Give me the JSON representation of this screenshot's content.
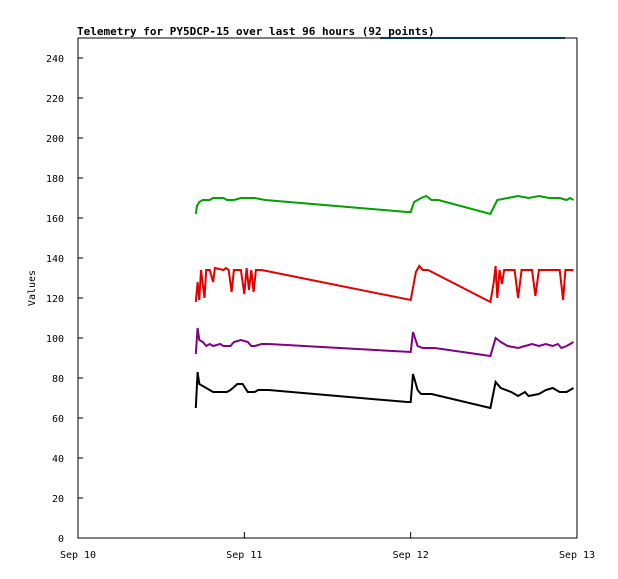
{
  "chart_data": {
    "type": "line",
    "title": "Telemetry for PY5DCP-15 over last 96 hours (92 points)",
    "xlabel": "",
    "ylabel": "Values",
    "xlim": [
      "2025-09-10T00:00",
      "2025-09-13T00:00"
    ],
    "ylim": [
      0,
      250
    ],
    "x_ticks": [
      "Sep 10",
      "Sep 11",
      "Sep 12",
      "Sep 13"
    ],
    "y_ticks": [
      0,
      20,
      40,
      60,
      80,
      100,
      120,
      140,
      160,
      180,
      200,
      220,
      240
    ],
    "grid": false,
    "legend": false,
    "series": [
      {
        "color": "#00a000",
        "points": [
          [
            "2025-09-10T17:00",
            162
          ],
          [
            "2025-09-10T17:10",
            166
          ],
          [
            "2025-09-10T17:30",
            168
          ],
          [
            "2025-09-10T18:00",
            169
          ],
          [
            "2025-09-10T19:00",
            169
          ],
          [
            "2025-09-10T19:30",
            170
          ],
          [
            "2025-09-10T21:00",
            170
          ],
          [
            "2025-09-10T21:30",
            169
          ],
          [
            "2025-09-10T22:30",
            169
          ],
          [
            "2025-09-10T23:30",
            170
          ],
          [
            "2025-09-11T01:30",
            170
          ],
          [
            "2025-09-11T03:00",
            169
          ],
          [
            "2025-09-11T23:30",
            163
          ],
          [
            "2025-09-12T00:00",
            163
          ],
          [
            "2025-09-12T00:30",
            168
          ],
          [
            "2025-09-12T01:30",
            170
          ],
          [
            "2025-09-12T02:15",
            171
          ],
          [
            "2025-09-12T03:00",
            169
          ],
          [
            "2025-09-12T04:00",
            169
          ],
          [
            "2025-09-12T11:30",
            162
          ],
          [
            "2025-09-12T12:30",
            169
          ],
          [
            "2025-09-12T14:00",
            170
          ],
          [
            "2025-09-12T15:30",
            171
          ],
          [
            "2025-09-12T17:00",
            170
          ],
          [
            "2025-09-12T18:30",
            171
          ],
          [
            "2025-09-12T20:00",
            170
          ],
          [
            "2025-09-12T21:30",
            170
          ],
          [
            "2025-09-12T22:30",
            169
          ],
          [
            "2025-09-12T23:00",
            170
          ],
          [
            "2025-09-12T23:30",
            169
          ]
        ]
      },
      {
        "color": "#e00000",
        "points": [
          [
            "2025-09-10T17:00",
            118
          ],
          [
            "2025-09-10T17:15",
            128
          ],
          [
            "2025-09-10T17:30",
            119
          ],
          [
            "2025-09-10T17:45",
            134
          ],
          [
            "2025-09-10T18:15",
            120
          ],
          [
            "2025-09-10T18:30",
            134
          ],
          [
            "2025-09-10T19:00",
            134
          ],
          [
            "2025-09-10T19:30",
            128
          ],
          [
            "2025-09-10T19:45",
            135
          ],
          [
            "2025-09-10T21:00",
            134
          ],
          [
            "2025-09-10T21:20",
            135
          ],
          [
            "2025-09-10T21:45",
            134
          ],
          [
            "2025-09-10T22:10",
            123
          ],
          [
            "2025-09-10T22:30",
            134
          ],
          [
            "2025-09-10T23:30",
            134
          ],
          [
            "2025-09-11T00:00",
            122
          ],
          [
            "2025-09-11T00:20",
            135
          ],
          [
            "2025-09-11T00:40",
            124
          ],
          [
            "2025-09-11T01:00",
            134
          ],
          [
            "2025-09-11T01:20",
            123
          ],
          [
            "2025-09-11T01:40",
            134
          ],
          [
            "2025-09-11T02:10",
            134
          ],
          [
            "2025-09-11T02:30",
            134
          ],
          [
            "2025-09-12T00:00",
            119
          ],
          [
            "2025-09-12T00:45",
            133
          ],
          [
            "2025-09-12T01:15",
            136
          ],
          [
            "2025-09-12T01:45",
            134
          ],
          [
            "2025-09-12T02:30",
            134
          ],
          [
            "2025-09-12T11:30",
            118
          ],
          [
            "2025-09-12T12:00",
            128
          ],
          [
            "2025-09-12T12:15",
            136
          ],
          [
            "2025-09-12T12:30",
            120
          ],
          [
            "2025-09-12T12:50",
            134
          ],
          [
            "2025-09-12T13:10",
            127
          ],
          [
            "2025-09-12T13:30",
            134
          ],
          [
            "2025-09-12T15:00",
            134
          ],
          [
            "2025-09-12T15:30",
            120
          ],
          [
            "2025-09-12T16:00",
            134
          ],
          [
            "2025-09-12T17:30",
            134
          ],
          [
            "2025-09-12T18:00",
            121
          ],
          [
            "2025-09-12T18:30",
            134
          ],
          [
            "2025-09-12T21:30",
            134
          ],
          [
            "2025-09-12T22:00",
            119
          ],
          [
            "2025-09-12T22:20",
            134
          ],
          [
            "2025-09-12T23:30",
            134
          ]
        ]
      },
      {
        "color": "#800080",
        "points": [
          [
            "2025-09-10T17:00",
            92
          ],
          [
            "2025-09-10T17:15",
            105
          ],
          [
            "2025-09-10T17:30",
            99
          ],
          [
            "2025-09-10T18:00",
            98
          ],
          [
            "2025-09-10T18:30",
            96
          ],
          [
            "2025-09-10T19:00",
            97
          ],
          [
            "2025-09-10T19:30",
            96
          ],
          [
            "2025-09-10T20:30",
            97
          ],
          [
            "2025-09-10T21:00",
            96
          ],
          [
            "2025-09-10T22:00",
            96
          ],
          [
            "2025-09-10T22:30",
            98
          ],
          [
            "2025-09-10T23:30",
            99
          ],
          [
            "2025-09-11T00:30",
            98
          ],
          [
            "2025-09-11T01:00",
            96
          ],
          [
            "2025-09-11T01:30",
            96
          ],
          [
            "2025-09-11T02:30",
            97
          ],
          [
            "2025-09-11T03:30",
            97
          ],
          [
            "2025-09-12T00:00",
            93
          ],
          [
            "2025-09-12T00:20",
            103
          ],
          [
            "2025-09-12T01:00",
            96
          ],
          [
            "2025-09-12T01:45",
            95
          ],
          [
            "2025-09-12T03:30",
            95
          ],
          [
            "2025-09-12T11:30",
            91
          ],
          [
            "2025-09-12T12:15",
            100
          ],
          [
            "2025-09-12T13:00",
            98
          ],
          [
            "2025-09-12T14:00",
            96
          ],
          [
            "2025-09-12T15:30",
            95
          ],
          [
            "2025-09-12T16:30",
            96
          ],
          [
            "2025-09-12T17:30",
            97
          ],
          [
            "2025-09-12T18:30",
            96
          ],
          [
            "2025-09-12T19:30",
            97
          ],
          [
            "2025-09-12T20:30",
            96
          ],
          [
            "2025-09-12T21:15",
            97
          ],
          [
            "2025-09-12T21:45",
            95
          ],
          [
            "2025-09-12T22:30",
            96
          ],
          [
            "2025-09-12T23:00",
            97
          ],
          [
            "2025-09-12T23:30",
            98
          ]
        ]
      },
      {
        "color": "#000000",
        "points": [
          [
            "2025-09-10T17:00",
            65
          ],
          [
            "2025-09-10T17:15",
            83
          ],
          [
            "2025-09-10T17:30",
            77
          ],
          [
            "2025-09-10T18:00",
            76
          ],
          [
            "2025-09-10T18:30",
            75
          ],
          [
            "2025-09-10T19:30",
            73
          ],
          [
            "2025-09-10T21:30",
            73
          ],
          [
            "2025-09-10T22:00",
            74
          ],
          [
            "2025-09-10T23:00",
            77
          ],
          [
            "2025-09-10T23:45",
            77
          ],
          [
            "2025-09-11T00:30",
            73
          ],
          [
            "2025-09-11T01:30",
            73
          ],
          [
            "2025-09-11T02:00",
            74
          ],
          [
            "2025-09-11T03:30",
            74
          ],
          [
            "2025-09-11T23:30",
            68
          ],
          [
            "2025-09-12T00:00",
            68
          ],
          [
            "2025-09-12T00:20",
            82
          ],
          [
            "2025-09-12T01:00",
            74
          ],
          [
            "2025-09-12T01:30",
            72
          ],
          [
            "2025-09-12T03:00",
            72
          ],
          [
            "2025-09-12T11:30",
            65
          ],
          [
            "2025-09-12T12:15",
            78
          ],
          [
            "2025-09-12T13:00",
            75
          ],
          [
            "2025-09-12T14:30",
            73
          ],
          [
            "2025-09-12T15:30",
            71
          ],
          [
            "2025-09-12T16:30",
            73
          ],
          [
            "2025-09-12T17:00",
            71
          ],
          [
            "2025-09-12T18:30",
            72
          ],
          [
            "2025-09-12T19:30",
            74
          ],
          [
            "2025-09-12T20:30",
            75
          ],
          [
            "2025-09-12T21:30",
            73
          ],
          [
            "2025-09-12T22:30",
            73
          ],
          [
            "2025-09-12T23:00",
            74
          ],
          [
            "2025-09-12T23:30",
            75
          ]
        ]
      }
    ]
  }
}
